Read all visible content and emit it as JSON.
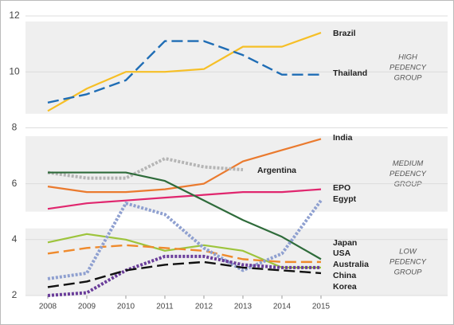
{
  "chart_data": {
    "type": "line",
    "x": [
      2008,
      2009,
      2010,
      2011,
      2012,
      2013,
      2014,
      2015
    ],
    "xlim": [
      2008,
      2015
    ],
    "xticks": [
      2008,
      2009,
      2010,
      2011,
      2012,
      2013,
      2014,
      2015
    ],
    "ylim": [
      2,
      12
    ],
    "yticks": [
      2,
      4,
      6,
      8,
      10,
      12
    ],
    "grid": true,
    "bands": [
      {
        "label": [
          "HIGH",
          "PEDENCY",
          "GROUP"
        ],
        "range": [
          8.5,
          11.8
        ]
      },
      {
        "label": [
          "MEDIUM",
          "PEDENCY",
          "GROUP"
        ],
        "range": [
          5.0,
          7.7
        ]
      },
      {
        "label": [
          "LOW",
          "PEDENCY",
          "GROUP"
        ],
        "range": [
          2.0,
          4.4
        ]
      }
    ],
    "series": [
      {
        "name": "Brazil",
        "color": "#f6bf26",
        "style": "solid",
        "values": [
          8.6,
          9.4,
          10.0,
          10.0,
          10.1,
          10.9,
          10.9,
          11.4
        ]
      },
      {
        "name": "Thailand",
        "color": "#1f6db5",
        "style": "dashed",
        "values": [
          8.9,
          9.2,
          9.7,
          11.1,
          11.1,
          10.6,
          9.9,
          9.9
        ]
      },
      {
        "name": "India",
        "color": "#ea7a2e",
        "style": "solid",
        "values": [
          5.9,
          5.7,
          5.7,
          5.8,
          6.0,
          6.8,
          7.2,
          7.6
        ]
      },
      {
        "name": "Argentina",
        "color": "#b5b5b5",
        "style": "dotted",
        "values": [
          6.4,
          6.2,
          6.2,
          6.9,
          6.6,
          6.5,
          null,
          null
        ]
      },
      {
        "name": "EPO",
        "color": "#e0266e",
        "style": "solid",
        "values": [
          5.1,
          5.3,
          5.4,
          5.5,
          5.6,
          5.7,
          5.7,
          5.8
        ]
      },
      {
        "name": "Egypt",
        "color": "#2e6b3a",
        "style": "solid",
        "values": [
          6.4,
          6.4,
          6.4,
          6.1,
          5.4,
          4.7,
          4.1,
          3.3
        ]
      },
      {
        "name": "Japan",
        "color": "#9dc43c",
        "style": "solid",
        "values": [
          3.9,
          4.2,
          4.0,
          3.6,
          3.8,
          3.6,
          3.0,
          3.0
        ]
      },
      {
        "name": "USA",
        "color": "#ef8a2c",
        "style": "dashed",
        "values": [
          3.5,
          3.7,
          3.8,
          3.7,
          3.6,
          3.3,
          3.2,
          3.2
        ]
      },
      {
        "name": "Australia",
        "color": "#8fa0d0",
        "style": "dotted",
        "values": [
          2.6,
          2.8,
          5.3,
          4.9,
          3.7,
          2.9,
          3.5,
          5.4
        ]
      },
      {
        "name": "China",
        "color": "#6a3d9a",
        "style": "dotted",
        "values": [
          2.0,
          2.1,
          2.9,
          3.4,
          3.4,
          3.1,
          3.0,
          3.0
        ]
      },
      {
        "name": "Korea",
        "color": "#111111",
        "style": "dashed",
        "values": [
          2.3,
          2.5,
          2.9,
          3.1,
          3.2,
          3.0,
          2.9,
          2.8
        ]
      }
    ]
  }
}
